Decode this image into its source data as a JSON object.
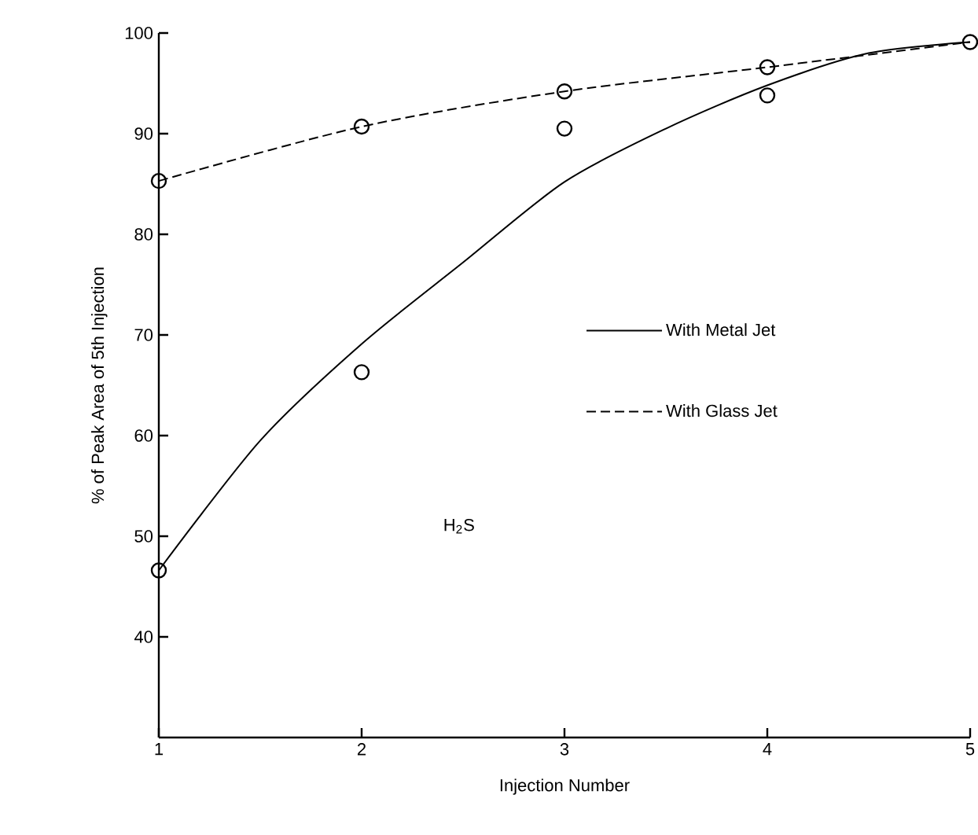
{
  "chart_data": {
    "type": "line",
    "xlabel": "Injection Number",
    "ylabel": "% of Peak Area of 5th Injection",
    "xlim": [
      1,
      5
    ],
    "ylim": [
      30,
      100
    ],
    "xticks": [
      1,
      2,
      3,
      4,
      5
    ],
    "yticks": [
      40,
      50,
      60,
      70,
      80,
      90,
      100
    ],
    "legend": "right",
    "grid": false,
    "annotations": [
      "H$_{2}$S"
    ],
    "series": [
      {
        "name": "With Metal Jet",
        "color": "#000000",
        "line_style": "solid",
        "marker": "none",
        "x": [
          1,
          1.5,
          2,
          2.5,
          3,
          3.5,
          4,
          4.5,
          5
        ],
        "values": [
          46.6,
          59.5,
          69.1,
          77.2,
          85.2,
          90.5,
          94.8,
          98.0,
          99.1
        ]
      },
      {
        "name": "With Glass Jet",
        "color": "#000000",
        "line_style": "dashed",
        "marker": "none",
        "x": [
          1,
          2,
          3,
          4,
          5
        ],
        "values": [
          85.3,
          90.7,
          94.2,
          96.6,
          99.1
        ]
      },
      {
        "type": "scatter",
        "color": "#000000",
        "marker": "circle",
        "x": [
          1,
          2,
          3,
          4
        ],
        "values": [
          46.6,
          66.3,
          90.5,
          93.8
        ]
      },
      {
        "type": "scatter",
        "color": "#000000",
        "marker": "circle",
        "x": [
          1,
          2,
          3,
          4,
          5
        ],
        "values": [
          85.3,
          90.7,
          94.2,
          96.6,
          99.1
        ]
      }
    ]
  }
}
